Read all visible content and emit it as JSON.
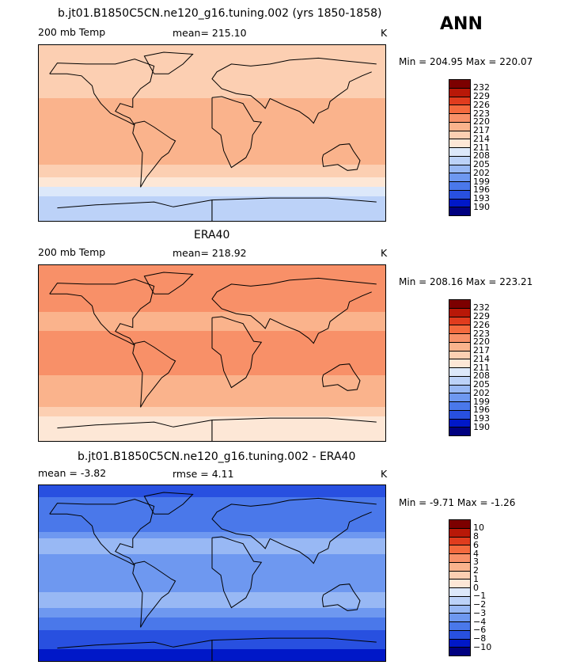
{
  "season": "ANN",
  "palette_abs": [
    "#000080",
    "#0018c8",
    "#2850e0",
    "#4a78ea",
    "#6e98f0",
    "#98b8f4",
    "#bcd2f8",
    "#dce8fa",
    "#fde7d6",
    "#fccfb2",
    "#fab38c",
    "#f89068",
    "#f46a3e",
    "#e03c1e",
    "#b81808",
    "#7c0000"
  ],
  "palette_diff": [
    "#000080",
    "#0018c8",
    "#2850e0",
    "#4a78ea",
    "#6e98f0",
    "#98b8f4",
    "#bcd2f8",
    "#dce8fa",
    "#fde7d6",
    "#fccfb2",
    "#fab38c",
    "#f89068",
    "#f46a3e",
    "#e03c1e",
    "#b81808",
    "#7c0000"
  ],
  "panels": [
    {
      "title": "b.jt01.B1850C5CN.ne120_g16.tuning.002 (yrs 1850-1858)",
      "left_label": "200 mb Temp",
      "center_label": "mean= 215.10",
      "units": "K",
      "min_max": "Min = 204.95 Max = 220.07",
      "colorbar_labels": [
        "232",
        "229",
        "226",
        "223",
        "220",
        "217",
        "214",
        "211",
        "208",
        "205",
        "202",
        "199",
        "196",
        "193",
        "190"
      ]
    },
    {
      "title": "ERA40",
      "left_label": "200 mb Temp",
      "center_label": "mean= 218.92",
      "units": "K",
      "min_max": "Min = 208.16 Max = 223.21",
      "colorbar_labels": [
        "232",
        "229",
        "226",
        "223",
        "220",
        "217",
        "214",
        "211",
        "208",
        "205",
        "202",
        "199",
        "196",
        "193",
        "190"
      ]
    },
    {
      "title": "b.jt01.B1850C5CN.ne120_g16.tuning.002 - ERA40",
      "left_label": "mean =   -3.82",
      "center_label": "rmse =    4.11",
      "units": "K",
      "min_max": "Min =  -9.71 Max =  -1.26",
      "colorbar_labels": [
        "10",
        "8",
        "6",
        "4",
        "3",
        "2",
        "1",
        "0",
        "−1",
        "−2",
        "−3",
        "−4",
        "−6",
        "−8",
        "−10"
      ]
    }
  ],
  "chart_data": [
    {
      "type": "heatmap",
      "title": "b.jt01.B1850C5CN.ne120_g16.tuning.002 (yrs 1850-1858)",
      "variable": "200 mb Temp",
      "units": "K",
      "mean": 215.1,
      "min": 204.95,
      "max": 220.07,
      "contour_levels": [
        190,
        193,
        196,
        199,
        202,
        205,
        208,
        211,
        214,
        217,
        220,
        223,
        226,
        229,
        232
      ],
      "latitude_band_values": [
        {
          "lat": 90,
          "value": 215
        },
        {
          "lat": 70,
          "value": 216
        },
        {
          "lat": 50,
          "value": 215
        },
        {
          "lat": 30,
          "value": 218
        },
        {
          "lat": 10,
          "value": 218.5
        },
        {
          "lat": -10,
          "value": 217
        },
        {
          "lat": -30,
          "value": 217.5
        },
        {
          "lat": -50,
          "value": 213
        },
        {
          "lat": -65,
          "value": 208
        },
        {
          "lat": -90,
          "value": 206
        }
      ]
    },
    {
      "type": "heatmap",
      "title": "ERA40",
      "variable": "200 mb Temp",
      "units": "K",
      "mean": 218.92,
      "min": 208.16,
      "max": 223.21,
      "contour_levels": [
        190,
        193,
        196,
        199,
        202,
        205,
        208,
        211,
        214,
        217,
        220,
        223,
        226,
        229,
        232
      ],
      "latitude_band_values": [
        {
          "lat": 90,
          "value": 221.5
        },
        {
          "lat": 70,
          "value": 221
        },
        {
          "lat": 50,
          "value": 220.5
        },
        {
          "lat": 30,
          "value": 219
        },
        {
          "lat": 10,
          "value": 221.5
        },
        {
          "lat": -10,
          "value": 221
        },
        {
          "lat": -30,
          "value": 219.5
        },
        {
          "lat": -50,
          "value": 218
        },
        {
          "lat": -65,
          "value": 214
        },
        {
          "lat": -90,
          "value": 211
        }
      ]
    },
    {
      "type": "heatmap",
      "title": "b.jt01.B1850C5CN.ne120_g16.tuning.002 - ERA40",
      "units": "K",
      "mean": -3.82,
      "rmse": 4.11,
      "min": -9.71,
      "max": -1.26,
      "contour_levels": [
        -10,
        -8,
        -6,
        -4,
        -3,
        -2,
        -1,
        0,
        1,
        2,
        3,
        4,
        6,
        8,
        10
      ],
      "latitude_band_values": [
        {
          "lat": 90,
          "value": -7
        },
        {
          "lat": 70,
          "value": -5.5
        },
        {
          "lat": 50,
          "value": -5
        },
        {
          "lat": 30,
          "value": -2.5
        },
        {
          "lat": 10,
          "value": -3.5
        },
        {
          "lat": -10,
          "value": -3.5
        },
        {
          "lat": -30,
          "value": -2.5
        },
        {
          "lat": -50,
          "value": -4.5
        },
        {
          "lat": -65,
          "value": -7
        },
        {
          "lat": -90,
          "value": -9
        }
      ]
    }
  ]
}
